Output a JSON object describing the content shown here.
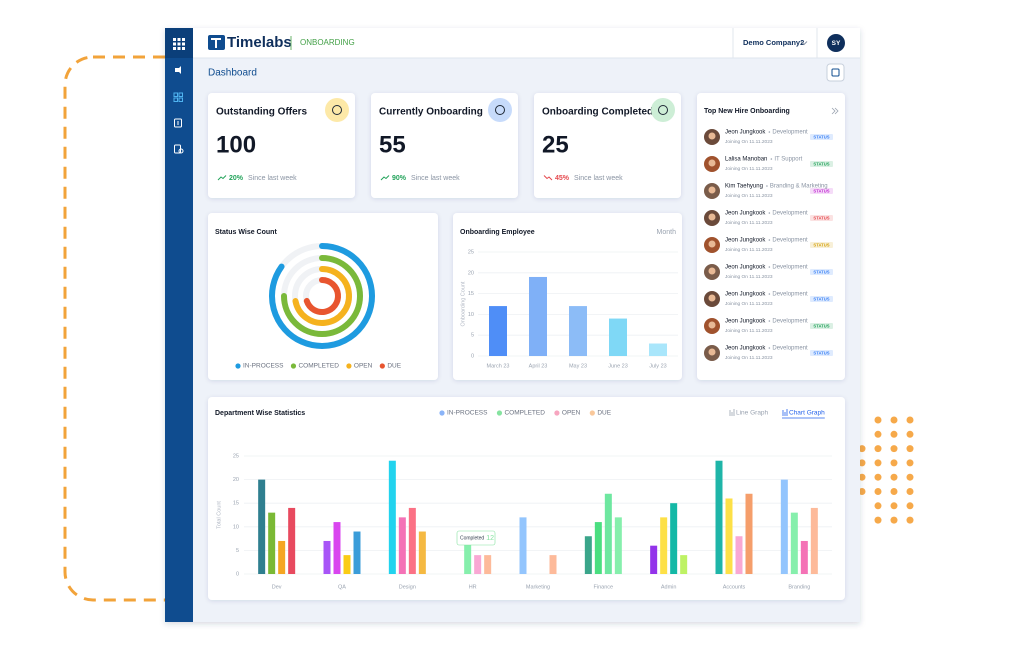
{
  "header": {
    "logo": "Timelabs",
    "module": "ONBOARDING",
    "company": "Demo Company2",
    "avatar": "SY"
  },
  "page_title": "Dashboard",
  "stats": [
    {
      "title": "Outstanding Offers",
      "value": 100,
      "change": "20%",
      "note": "Since last week",
      "color": "#22a35a",
      "icon_color": "#fde9a8"
    },
    {
      "title": "Currently Onboarding",
      "value": 55,
      "change": "90%",
      "note": "Since last week",
      "color": "#22a35a",
      "icon_color": "#c7dbfb"
    },
    {
      "title": "Onboarding Completed",
      "value": 25,
      "change": "45%",
      "note": "Since last week",
      "color": "#e5484d",
      "icon_color": "#cdeed6"
    }
  ],
  "new_hires": {
    "title": "Top New Hire Onboarding",
    "items": [
      {
        "name": "Jeon Jungkook",
        "role": "Development",
        "joining": "Joining On 11.11.2023",
        "status": "STATUS",
        "status_color": "#3b82f6"
      },
      {
        "name": "Lalisa Manoban",
        "role": "IT Support",
        "joining": "Joining On 11.11.2023",
        "status": "STATUS",
        "status_color": "#22a35a"
      },
      {
        "name": "Kim Taehyung",
        "role": "Branding & Marketing",
        "joining": "Joining On 11.11.2023",
        "status": "STATUS",
        "status_color": "#c026d3"
      },
      {
        "name": "Jeon Jungkook",
        "role": "Development",
        "joining": "Joining On 11.11.2023",
        "status": "STATUS",
        "status_color": "#e5484d"
      },
      {
        "name": "Jeon Jungkook",
        "role": "Development",
        "joining": "Joining On 11.11.2023",
        "status": "STATUS",
        "status_color": "#d4a10a"
      },
      {
        "name": "Jeon Jungkook",
        "role": "Development",
        "joining": "Joining On 11.11.2023",
        "status": "STATUS",
        "status_color": "#3b82f6"
      },
      {
        "name": "Jeon Jungkook",
        "role": "Development",
        "joining": "Joining On 11.11.2023",
        "status": "STATUS",
        "status_color": "#3b82f6"
      },
      {
        "name": "Jeon Jungkook",
        "role": "Development",
        "joining": "Joining On 11.11.2023",
        "status": "STATUS",
        "status_color": "#22a35a"
      },
      {
        "name": "Jeon Jungkook",
        "role": "Development",
        "joining": "Joining On 11.11.2023",
        "status": "STATUS",
        "status_color": "#3b82f6"
      }
    ]
  },
  "chart_data": [
    {
      "type": "radial_bar",
      "title": "Status Wise Count",
      "categories": [
        "IN-PROCESS",
        "COMPLETED",
        "OPEN",
        "DUE"
      ],
      "values": [
        85,
        75,
        72,
        70
      ],
      "colors": [
        "#1e9be0",
        "#7ab93a",
        "#f5b21e",
        "#e8552f"
      ],
      "rlim": [
        0,
        100
      ]
    },
    {
      "type": "bar",
      "title": "Onboarding Employee",
      "filter": "Month",
      "ylabel": "Onboarding Count",
      "categories": [
        "March 23",
        "April 23",
        "May 23",
        "June 23",
        "July 23"
      ],
      "values": [
        12,
        19,
        12,
        9,
        3
      ],
      "colors": [
        "#4f8ef7",
        "#7fb0f7",
        "#8cbcf7",
        "#7fd8f6",
        "#a9e6fb"
      ],
      "ylim": [
        0,
        25
      ],
      "yticks": [
        0,
        5,
        10,
        15,
        20,
        25
      ],
      "grid": true
    },
    {
      "type": "grouped_bar",
      "title": "Department Wise Statistics",
      "ylabel": "Total Count",
      "toggles": [
        "Line Graph",
        "Chart Graph"
      ],
      "active_toggle": 1,
      "categories": [
        "Dev",
        "QA",
        "Design",
        "HR",
        "Marketing",
        "Finance",
        "Admin",
        "Accounts",
        "Branding"
      ],
      "series": [
        {
          "name": "IN-PROCESS",
          "color": "#8ab4f8",
          "values": [
            20,
            7,
            24,
            0,
            12,
            8,
            6,
            24,
            20
          ]
        },
        {
          "name": "COMPLETED",
          "color": "#86e3a0",
          "values": [
            13,
            11,
            12,
            8,
            0,
            11,
            12,
            16,
            13
          ]
        },
        {
          "name": "OPEN",
          "color": "#f7a6c0",
          "values": [
            7,
            4,
            14,
            4,
            0,
            17,
            15,
            8,
            7
          ]
        },
        {
          "name": "DUE",
          "color": "#f9c89b",
          "values": [
            14,
            9,
            9,
            4,
            4,
            12,
            4,
            17,
            14
          ]
        }
      ],
      "bar_colors": [
        [
          "#2f7f8f",
          "#7ab935",
          "#f5a623",
          "#e84a5f"
        ],
        [
          "#a855f7",
          "#d946ef",
          "#facc15",
          "#3b9dd9"
        ],
        [
          "#22d3ee",
          "#f472b6",
          "#fb7185",
          "#f5b942"
        ],
        [
          "#8ab4f8",
          "#86efac",
          "#f9a8d4",
          "#fdba9a"
        ],
        [
          "#93c5fd",
          "#86efac",
          "#f9a8d4",
          "#fdba9a"
        ],
        [
          "#3aa58a",
          "#4ade80",
          "#6ee7a0",
          "#86efac"
        ],
        [
          "#9333ea",
          "#fde047",
          "#14b8a6",
          "#bef264"
        ],
        [
          "#1fb5a8",
          "#fde047",
          "#f9a8d4",
          "#f59e6b"
        ],
        [
          "#93c5fd",
          "#86efac",
          "#f472b6",
          "#fdba9a"
        ]
      ],
      "ylim": [
        0,
        25
      ],
      "yticks": [
        0,
        5,
        10,
        15,
        20,
        25
      ],
      "grid": true,
      "tooltip": {
        "label": "Completed",
        "value": 12
      }
    }
  ]
}
